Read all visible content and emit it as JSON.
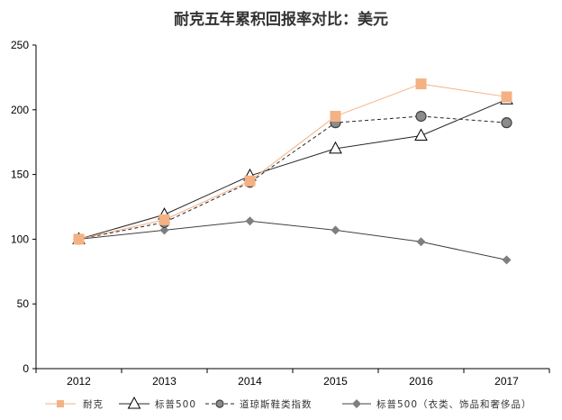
{
  "chart_data": {
    "type": "line",
    "title": "耐克五年累积回报率对比：美元",
    "xlabel": "",
    "ylabel": "",
    "categories": [
      "2012",
      "2013",
      "2014",
      "2015",
      "2016",
      "2017"
    ],
    "ylim": [
      0,
      250
    ],
    "yticks": [
      0,
      50,
      100,
      150,
      200,
      250
    ],
    "grid": false,
    "legend_position": "bottom",
    "series": [
      {
        "name": "耐克",
        "values": [
          100,
          115,
          145,
          195,
          220,
          210
        ],
        "color": "#F4B183",
        "marker": "square",
        "dash": "solid"
      },
      {
        "name": "标普500",
        "values": [
          100,
          119,
          149,
          170,
          180,
          208
        ],
        "color": "#262626",
        "marker": "triangle-open",
        "dash": "solid"
      },
      {
        "name": "道琼斯鞋类指数",
        "values": [
          100,
          113,
          144,
          190,
          195,
          190
        ],
        "color": "#262626",
        "marker": "circle-gray",
        "dash": "dashed"
      },
      {
        "name": "标普500（衣类、饰品和奢侈品）",
        "values": [
          100,
          107,
          114,
          107,
          98,
          84
        ],
        "color": "#404040",
        "marker": "diamond-gray",
        "dash": "solid"
      }
    ]
  }
}
